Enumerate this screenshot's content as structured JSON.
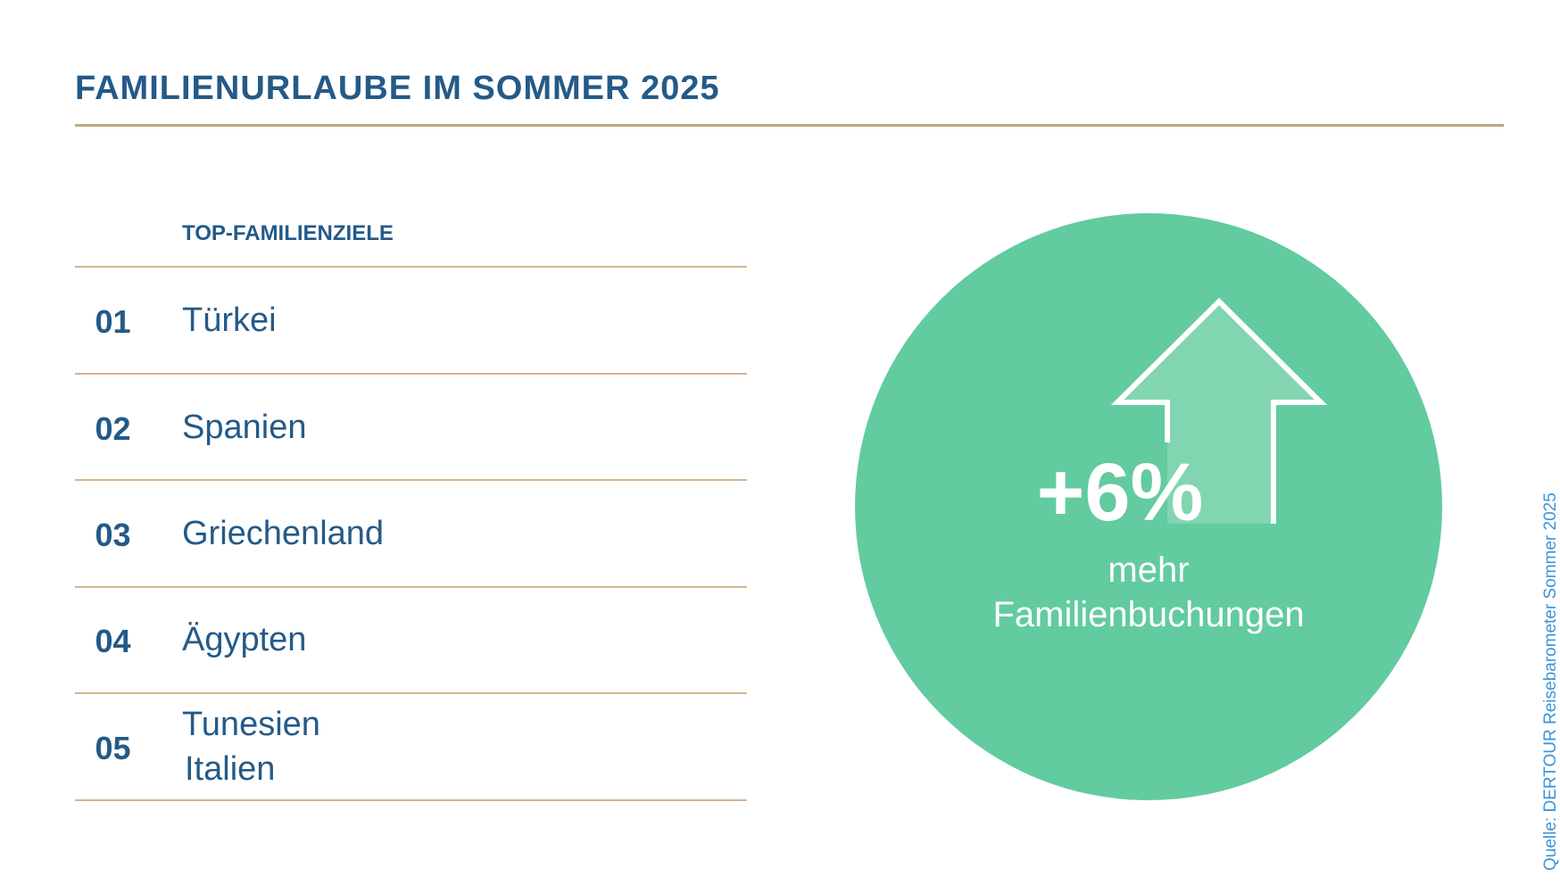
{
  "title": "FAMILIENURLAUBE IM SOMMER 2025",
  "ranking": {
    "header": "TOP-FAMILIENZIELE",
    "rows": [
      {
        "rank": "01",
        "names": [
          "Türkei"
        ]
      },
      {
        "rank": "02",
        "names": [
          "Spanien"
        ]
      },
      {
        "rank": "03",
        "names": [
          "Griechenland"
        ]
      },
      {
        "rank": "04",
        "names": [
          "Ägypten"
        ]
      },
      {
        "rank": "05",
        "names": [
          "Tunesien",
          "Italien"
        ]
      }
    ]
  },
  "highlight": {
    "value": "+6%",
    "line1": "mehr",
    "line2": "Familienbuchungen",
    "icon": "arrow-up-icon",
    "circle_color": "#62cb9f",
    "arrow_fill": "#82d5b1"
  },
  "source": "Quelle: DERTOUR Reisebarometer Sommer 2025",
  "colors": {
    "primary": "#245a88",
    "rule": "#c4a483",
    "source": "#3a96d8"
  }
}
